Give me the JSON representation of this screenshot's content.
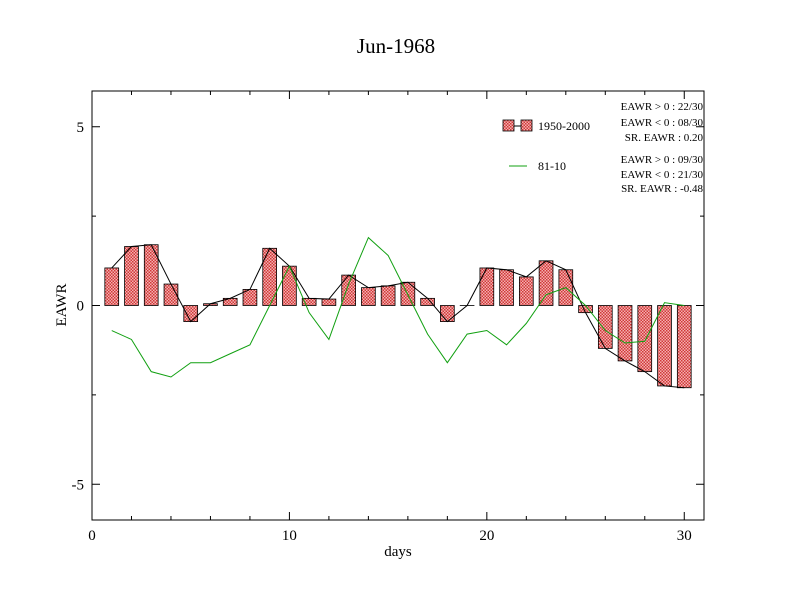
{
  "chart_data": {
    "type": "bar",
    "title": "Jun-1968",
    "xlabel": "days",
    "ylabel": "EAWR",
    "xlim": [
      0,
      31
    ],
    "ylim": [
      -6,
      6
    ],
    "x_ticks": [
      0,
      10,
      20,
      30
    ],
    "y_ticks": [
      5,
      0,
      -5
    ],
    "x_tick_labels": [
      "0",
      "10",
      "20",
      "30"
    ],
    "y_tick_labels": [
      "5",
      "0",
      "-5"
    ],
    "grid": false,
    "legend_position": "top-right",
    "bar_color": "#e86a6a",
    "line_color": "#000000",
    "normal_color": "#11a011",
    "days": [
      1,
      2,
      3,
      4,
      5,
      6,
      7,
      8,
      9,
      10,
      11,
      12,
      13,
      14,
      15,
      16,
      17,
      18,
      19,
      20,
      21,
      22,
      23,
      24,
      25,
      26,
      27,
      28,
      29,
      30
    ],
    "series": [
      {
        "name": "1950-2000",
        "kind": "bar",
        "values": [
          1.05,
          1.65,
          1.7,
          0.6,
          -0.45,
          0.05,
          0.2,
          0.45,
          1.6,
          1.1,
          0.2,
          0.18,
          0.85,
          0.5,
          0.55,
          0.65,
          0.2,
          -0.45,
          0.0,
          1.05,
          1.0,
          0.8,
          1.25,
          1.0,
          -0.2,
          -1.2,
          -1.55,
          -1.85,
          -2.25,
          -2.3
        ]
      },
      {
        "name": "81-10",
        "kind": "line",
        "values": [
          -0.7,
          -0.95,
          -1.85,
          -2.0,
          -1.6,
          -1.6,
          -1.35,
          -1.1,
          0.0,
          1.1,
          -0.2,
          -0.95,
          0.6,
          1.9,
          1.4,
          0.3,
          -0.8,
          -1.6,
          -0.8,
          -0.7,
          -1.1,
          -0.5,
          0.3,
          0.5,
          0.0,
          -0.7,
          -1.05,
          -1.0,
          0.08,
          0.0
        ]
      }
    ],
    "stats": {
      "set1": [
        "EAWR > 0 : 22/30",
        "EAWR < 0 : 08/30",
        "SR. EAWR :  0.20"
      ],
      "set2": [
        "EAWR > 0 : 09/30",
        "EAWR < 0 : 21/30",
        "SR. EAWR : -0.48"
      ]
    }
  }
}
